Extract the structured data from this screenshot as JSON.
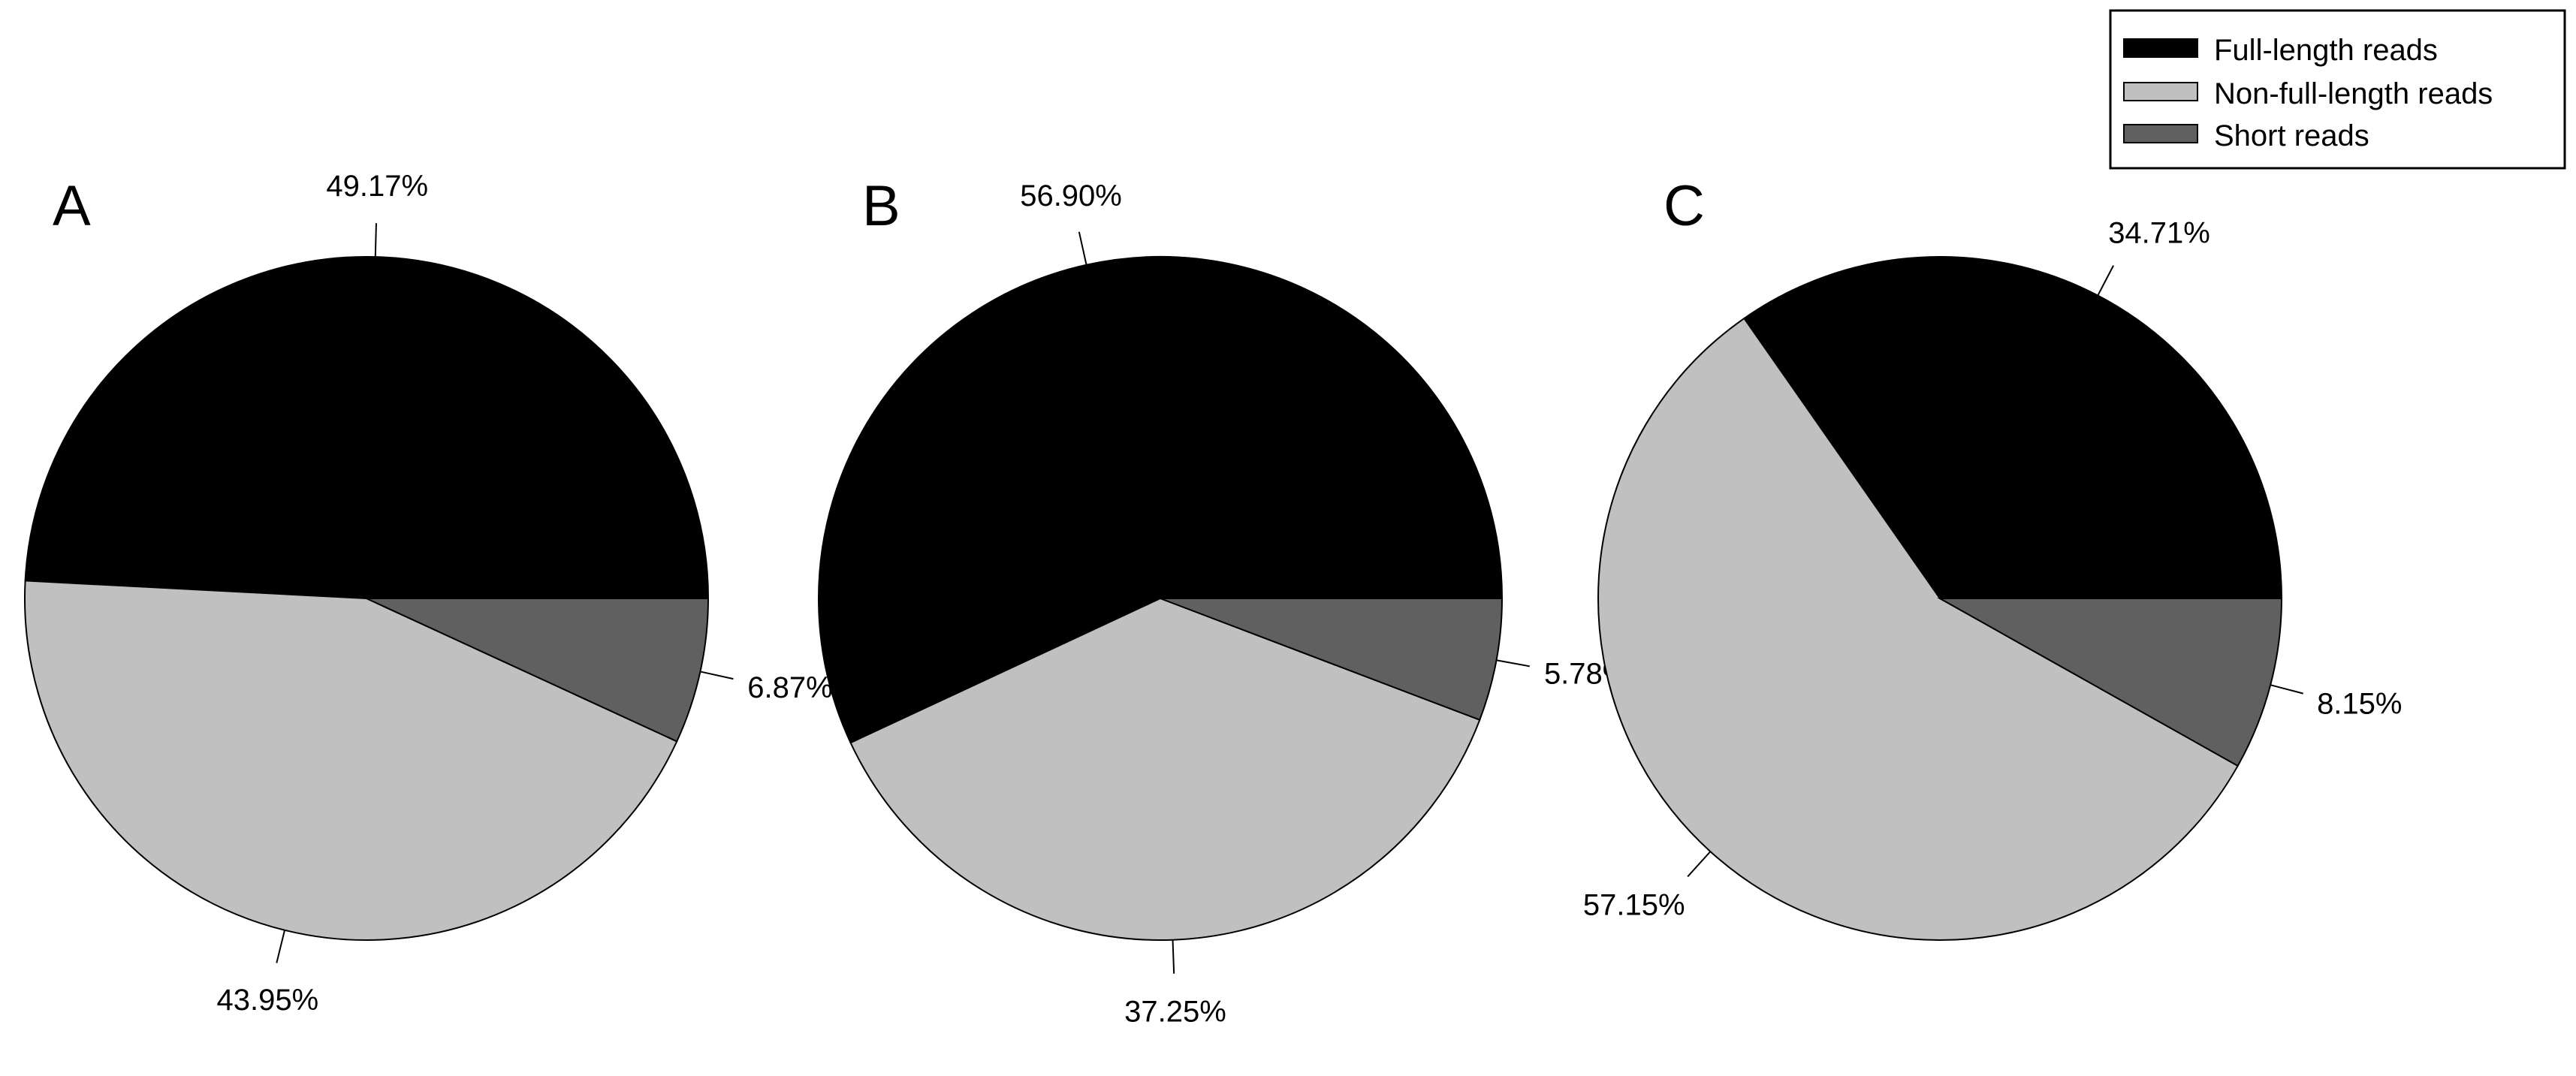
{
  "chart_data": [
    {
      "type": "pie",
      "panel": "A",
      "categories": [
        "Full-length reads",
        "Non-full-length reads",
        "Short reads"
      ],
      "values": [
        49.17,
        43.95,
        6.87
      ],
      "labels": [
        "49.17%",
        "43.95%",
        "6.87%"
      ]
    },
    {
      "type": "pie",
      "panel": "B",
      "categories": [
        "Full-length reads",
        "Non-full-length reads",
        "Short reads"
      ],
      "values": [
        56.9,
        37.25,
        5.78
      ],
      "labels": [
        "56.90%",
        "37.25%",
        "5.78%"
      ]
    },
    {
      "type": "pie",
      "panel": "C",
      "categories": [
        "Full-length reads",
        "Non-full-length reads",
        "Short reads"
      ],
      "values": [
        34.71,
        57.15,
        8.15
      ],
      "labels": [
        "34.71%",
        "57.15%",
        "8.15%"
      ]
    }
  ],
  "legend": {
    "position": "top-right",
    "items": [
      {
        "label": "Full-length reads",
        "color": "#000000"
      },
      {
        "label": "Non-full-length reads",
        "color": "#c0c0c0"
      },
      {
        "label": "Short reads",
        "color": "#606060"
      }
    ]
  },
  "colors": [
    "#000000",
    "#c0c0c0",
    "#606060"
  ]
}
